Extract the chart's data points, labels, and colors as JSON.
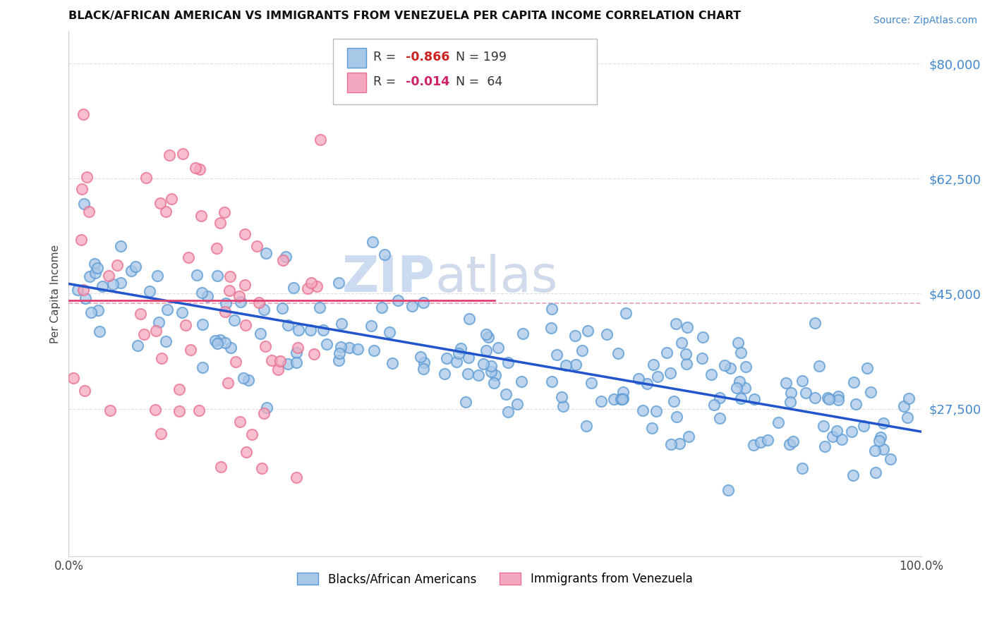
{
  "title": "BLACK/AFRICAN AMERICAN VS IMMIGRANTS FROM VENEZUELA PER CAPITA INCOME CORRELATION CHART",
  "source": "Source: ZipAtlas.com",
  "ylabel": "Per Capita Income",
  "xlim": [
    0,
    100
  ],
  "ylim": [
    5000,
    85000
  ],
  "yticks": [
    27500,
    45000,
    62500,
    80000
  ],
  "ytick_labels": [
    "$27,500",
    "$45,000",
    "$62,500",
    "$80,000"
  ],
  "xtick_positions": [
    0,
    100
  ],
  "xtick_labels": [
    "0.0%",
    "100.0%"
  ],
  "blue_R": "-0.866",
  "blue_N": "199",
  "pink_R": "-0.014",
  "pink_N": " 64",
  "legend_label_blue": "Blacks/African Americans",
  "legend_label_pink": "Immigrants from Venezuela",
  "blue_color": "#A8C8E8",
  "pink_color": "#F4A8C0",
  "blue_edge_color": "#5A9AD4",
  "pink_edge_color": "#E87090",
  "blue_line_color": "#2255CC",
  "pink_line_color": "#E04070",
  "pink_dash_color": "#E8A0B8",
  "grid_color": "#DDDDDD",
  "background_color": "#FFFFFF",
  "title_color": "#111111",
  "watermark_zip": "ZIP",
  "watermark_atlas": "atlas",
  "watermark_color": "#D0DCF0",
  "ytick_color": "#4488CC",
  "blue_line_y0": 46500,
  "blue_line_y1": 24000,
  "pink_line_y0": 44000,
  "pink_line_y1": 44000,
  "pink_dash_y": 43500
}
